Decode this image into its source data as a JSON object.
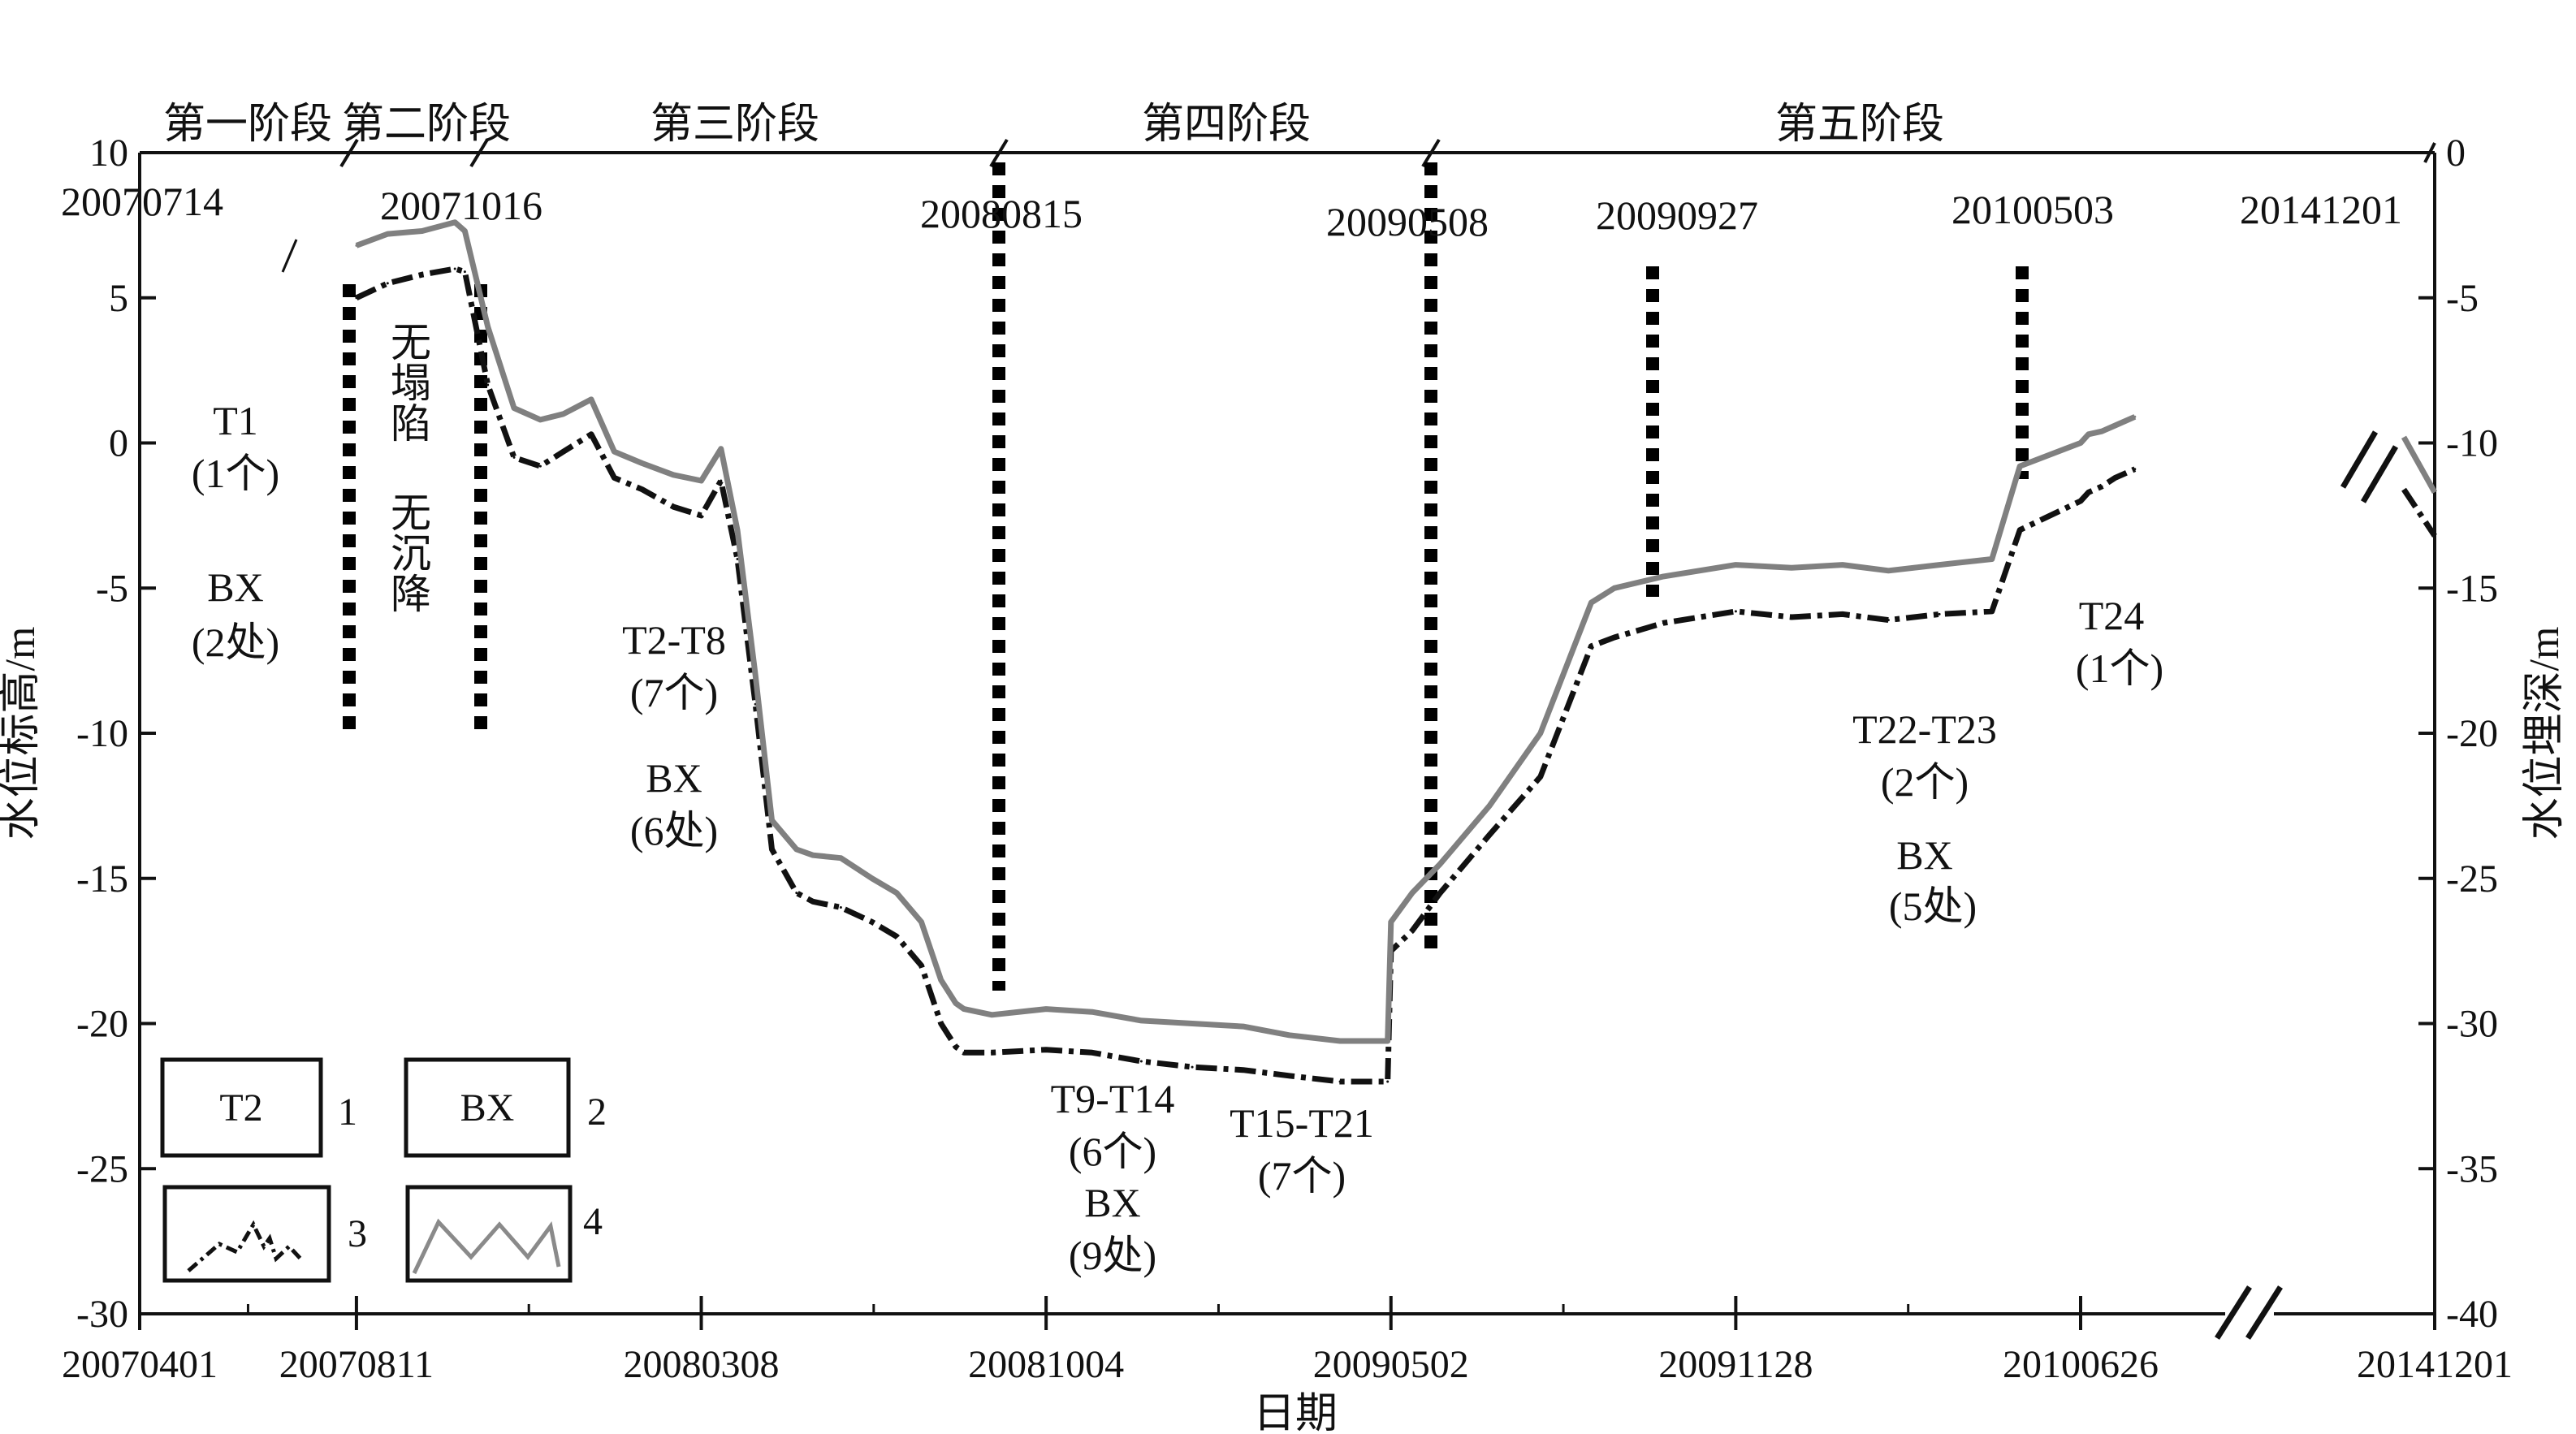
{
  "chart_data": {
    "type": "line",
    "xlabel": "日期",
    "ylabel_left": "水位标高/m",
    "ylabel_right": "水位埋深/m",
    "ylim_left": [
      -30,
      10
    ],
    "ylim_right": [
      -40,
      0
    ],
    "x_range": [
      "20070401",
      "20141201"
    ],
    "x_ticks": [
      "20070401",
      "20070811",
      "20080308",
      "20081004",
      "20090502",
      "20091128",
      "20100626",
      "20141201"
    ],
    "x_axis_break_after": "20100626",
    "y_ticks_left": [
      10,
      5,
      0,
      -5,
      -10,
      -15,
      -20,
      -25,
      -30
    ],
    "y_ticks_right": [
      0,
      -5,
      -10,
      -15,
      -20,
      -25,
      -30,
      -35,
      -40
    ],
    "grid": false,
    "stages": [
      "第一阶段",
      "第二阶段",
      "第三阶段",
      "第四阶段",
      "第五阶段"
    ],
    "date_annotations": [
      "20070714",
      "20071016",
      "20080815",
      "20090508",
      "20090927",
      "20100503",
      "20141201"
    ],
    "series": [
      {
        "name": "3",
        "style": "dash-dot",
        "color": "#111111",
        "x": [
          "20070811",
          "20070830",
          "20070920",
          "20071010",
          "20071016",
          "20071030",
          "20071115",
          "20071201",
          "20071215",
          "20080101",
          "20080115",
          "20080201",
          "20080220",
          "20080308",
          "20080320",
          "20080330",
          "20080410",
          "20080420",
          "20080505",
          "20080515",
          "20080601",
          "20080620",
          "20080705",
          "20080720",
          "20080801",
          "20080810",
          "20080815",
          "20080901",
          "20081004",
          "20081101",
          "20081201",
          "20090101",
          "20090201",
          "20090301",
          "20090401",
          "20090430",
          "20090502",
          "20090515",
          "20090601",
          "20090701",
          "20090801",
          "20090901",
          "20090915",
          "20091015",
          "20091128",
          "20100101",
          "20100201",
          "20100301",
          "20100401",
          "20100503",
          "20100520",
          "20100626",
          "20100801",
          "20101001",
          "20101201",
          "20110301"
        ],
        "values": [
          5.0,
          5.5,
          5.8,
          6.0,
          5.9,
          2.0,
          -0.5,
          -0.8,
          -0.3,
          0.3,
          -1.2,
          -1.6,
          -2.2,
          -2.5,
          -1.3,
          -4.0,
          -9.0,
          -14.0,
          -15.5,
          -15.8,
          -16.0,
          -16.5,
          -17.0,
          -18.0,
          -20.0,
          -20.8,
          -21.0,
          -21.0,
          -20.9,
          -21.0,
          -21.3,
          -21.5,
          -21.6,
          -21.8,
          -22.0,
          -22.0,
          -17.5,
          -16.8,
          -15.5,
          -13.5,
          -11.5,
          -7.0,
          -6.7,
          -6.2,
          -5.8,
          -6.0,
          -5.9,
          -6.1,
          -5.9,
          -5.8,
          -3.0,
          -2.0,
          -1.7,
          -1.5,
          -1.2,
          -0.9
        ]
      },
      {
        "name": "4",
        "style": "solid",
        "color": "#808080",
        "x": [
          "20070811",
          "20070830",
          "20070920",
          "20071010",
          "20071016",
          "20071030",
          "20071115",
          "20071201",
          "20071215",
          "20080101",
          "20080115",
          "20080201",
          "20080220",
          "20080308",
          "20080320",
          "20080330",
          "20080410",
          "20080420",
          "20080505",
          "20080515",
          "20080601",
          "20080620",
          "20080705",
          "20080720",
          "20080801",
          "20080810",
          "20080815",
          "20080901",
          "20081004",
          "20081101",
          "20081201",
          "20090101",
          "20090201",
          "20090301",
          "20090401",
          "20090430",
          "20090502",
          "20090515",
          "20090601",
          "20090701",
          "20090801",
          "20090901",
          "20090915",
          "20091015",
          "20091128",
          "20100101",
          "20100201",
          "20100301",
          "20100401",
          "20100503",
          "20100520",
          "20100626",
          "20100801",
          "20101001",
          "20101201",
          "20110301"
        ],
        "values": [
          6.8,
          7.2,
          7.3,
          7.6,
          7.3,
          4.0,
          1.2,
          0.8,
          1.0,
          1.5,
          -0.3,
          -0.7,
          -1.1,
          -1.3,
          -0.2,
          -3.0,
          -8.0,
          -13.0,
          -14.0,
          -14.2,
          -14.3,
          -15.0,
          -15.5,
          -16.5,
          -18.5,
          -19.3,
          -19.5,
          -19.7,
          -19.5,
          -19.6,
          -19.9,
          -20.0,
          -20.1,
          -20.4,
          -20.6,
          -20.6,
          -16.5,
          -15.5,
          -14.5,
          -12.5,
          -10.0,
          -5.5,
          -5.0,
          -4.6,
          -4.2,
          -4.3,
          -4.2,
          -4.4,
          -4.2,
          -4.0,
          -0.8,
          0.0,
          0.3,
          0.4,
          0.6,
          0.9
        ]
      }
    ],
    "groups": [
      {
        "id": "T1",
        "label": "T1",
        "count": "(1个)",
        "bx": "BX",
        "bx_count": "(2处)"
      },
      {
        "id": "none",
        "text1": "无塌陷",
        "text2": "无沉降"
      },
      {
        "id": "T2-T8",
        "label": "T2-T8",
        "count": "(7个)",
        "bx": "BX",
        "bx_count": "(6处)"
      },
      {
        "id": "T9-T14",
        "label": "T9-T14",
        "count": "(6个)",
        "bx": "BX",
        "bx_count": "(9处)"
      },
      {
        "id": "T15-T21",
        "label": "T15-T21",
        "count": "(7个)"
      },
      {
        "id": "T22-T23",
        "label": "T22-T23",
        "count": "(2个)",
        "bx": "BX",
        "bx_count": "(5处)"
      },
      {
        "id": "T24",
        "label": "T24",
        "count": "(1个)"
      }
    ],
    "legend": [
      {
        "key": "1",
        "box_text": "T2"
      },
      {
        "key": "2",
        "box_text": "BX"
      },
      {
        "key": "3",
        "symbol": "dash-dot line"
      },
      {
        "key": "4",
        "symbol": "gray line"
      }
    ]
  }
}
